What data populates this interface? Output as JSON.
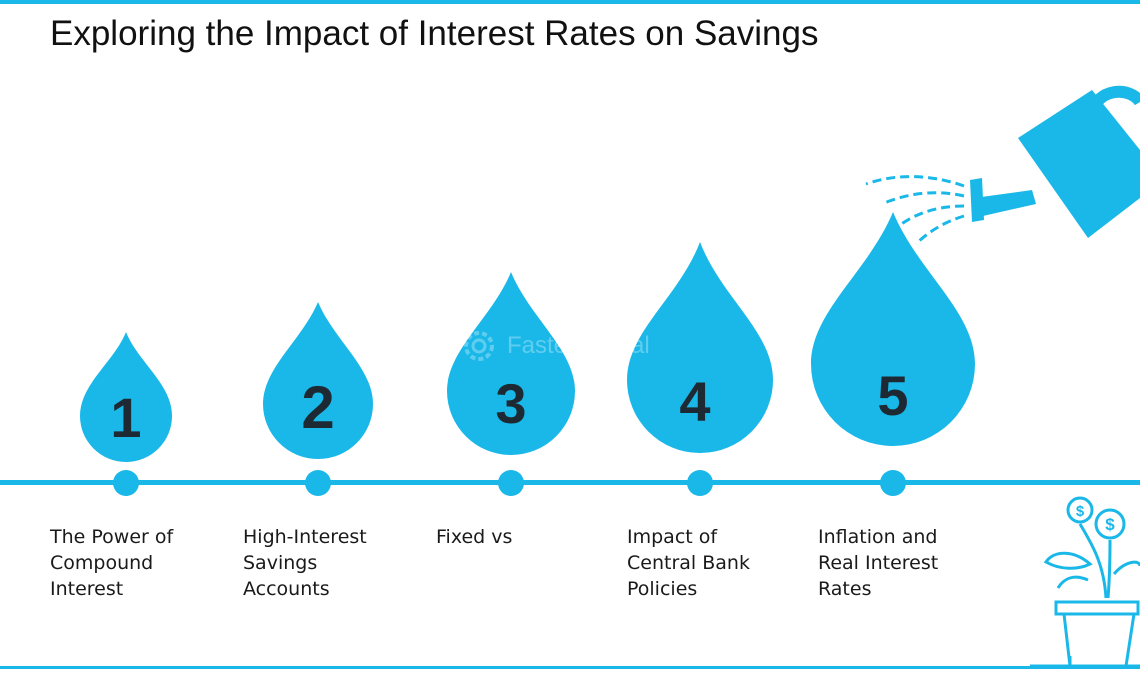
{
  "title": "Exploring the Impact of Interest Rates on Savings",
  "colors": {
    "accent": "#1ab8e8",
    "number_text": "#1e2a33",
    "label_text": "#1a1a1a"
  },
  "watermark": "FasterCapital",
  "steps": [
    {
      "number": "1",
      "label": "The Power of\nCompound\nInterest"
    },
    {
      "number": "2",
      "label": "High-Interest\nSavings\nAccounts"
    },
    {
      "number": "3",
      "label": "Fixed vs"
    },
    {
      "number": "4",
      "label": "Impact of\nCentral Bank\nPolicies"
    },
    {
      "number": "5",
      "label": "Inflation and\nReal Interest\nRates"
    }
  ],
  "icons": {
    "watering_can": "watering-can-icon",
    "money_plant": "money-plant-icon",
    "coin_symbol": "$"
  }
}
